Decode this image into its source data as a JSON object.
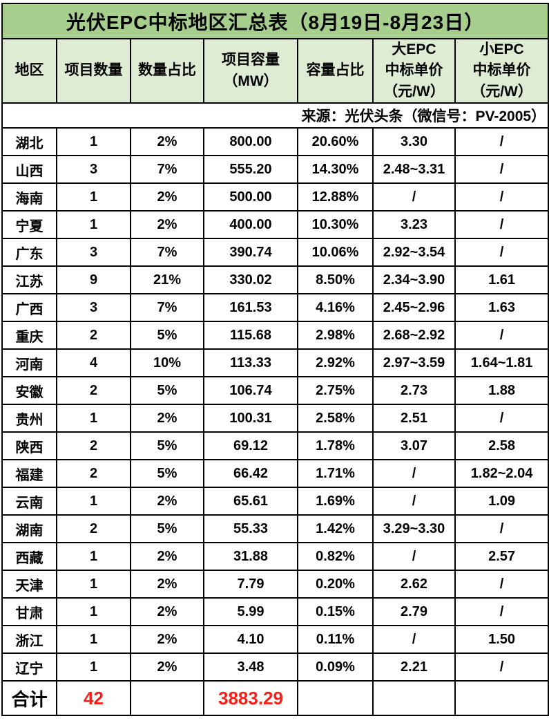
{
  "title": "光伏EPC中标地区汇总表（8月19日-8月23日）",
  "source_note": "来源：光伏头条（微信号：PV-2005）",
  "colors": {
    "title_bg": "#a6ce8c",
    "header_bg": "#deecd4",
    "grid": "#000000",
    "highlight_red": "#fa1e19"
  },
  "chart_data": {
    "type": "table",
    "title": "光伏EPC中标地区汇总表（8月19日-8月23日）",
    "source": "来源：光伏头条（微信号：PV-2005）",
    "columns": [
      {
        "label": "地区",
        "lines": [
          "地区"
        ]
      },
      {
        "label": "项目数量",
        "lines": [
          "项目数量"
        ]
      },
      {
        "label": "数量占比",
        "lines": [
          "数量占比"
        ]
      },
      {
        "label": "项目容量（MW）",
        "lines": [
          "项目容量",
          "（MW）"
        ]
      },
      {
        "label": "容量占比",
        "lines": [
          "容量占比"
        ]
      },
      {
        "label": "大EPC中标单价（元/W）",
        "lines": [
          "大EPC",
          "中标单价",
          "（元/W）"
        ]
      },
      {
        "label": "小EPC中标单价（元/W）",
        "lines": [
          "小EPC",
          "中标单价",
          "（元/W）"
        ]
      }
    ],
    "rows": [
      [
        "湖北",
        "1",
        "2%",
        "800.00",
        "20.60%",
        "3.30",
        "/"
      ],
      [
        "山西",
        "3",
        "7%",
        "555.20",
        "14.30%",
        "2.48~3.31",
        "/"
      ],
      [
        "海南",
        "1",
        "2%",
        "500.00",
        "12.88%",
        "/",
        "/"
      ],
      [
        "宁夏",
        "1",
        "2%",
        "400.00",
        "10.30%",
        "3.23",
        "/"
      ],
      [
        "广东",
        "3",
        "7%",
        "390.74",
        "10.06%",
        "2.92~3.54",
        "/"
      ],
      [
        "江苏",
        "9",
        "21%",
        "330.02",
        "8.50%",
        "2.34~3.90",
        "1.61"
      ],
      [
        "广西",
        "3",
        "7%",
        "161.53",
        "4.16%",
        "2.45~2.96",
        "1.63"
      ],
      [
        "重庆",
        "2",
        "5%",
        "115.68",
        "2.98%",
        "2.68~2.92",
        "/"
      ],
      [
        "河南",
        "4",
        "10%",
        "113.33",
        "2.92%",
        "2.97~3.59",
        "1.64~1.81"
      ],
      [
        "安徽",
        "2",
        "5%",
        "106.74",
        "2.75%",
        "2.73",
        "1.88"
      ],
      [
        "贵州",
        "1",
        "2%",
        "100.31",
        "2.58%",
        "2.51",
        "/"
      ],
      [
        "陕西",
        "2",
        "5%",
        "69.12",
        "1.78%",
        "3.07",
        "2.58"
      ],
      [
        "福建",
        "2",
        "5%",
        "66.42",
        "1.71%",
        "/",
        "1.82~2.04"
      ],
      [
        "云南",
        "1",
        "2%",
        "65.61",
        "1.69%",
        "/",
        "1.09"
      ],
      [
        "湖南",
        "2",
        "5%",
        "55.33",
        "1.42%",
        "3.29~3.30",
        "/"
      ],
      [
        "西藏",
        "1",
        "2%",
        "31.88",
        "0.82%",
        "/",
        "2.57"
      ],
      [
        "天津",
        "1",
        "2%",
        "7.79",
        "0.20%",
        "2.62",
        "/"
      ],
      [
        "甘肃",
        "1",
        "2%",
        "5.99",
        "0.15%",
        "2.79",
        "/"
      ],
      [
        "浙江",
        "1",
        "2%",
        "4.10",
        "0.11%",
        "/",
        "1.50"
      ],
      [
        "辽宁",
        "1",
        "2%",
        "3.48",
        "0.09%",
        "2.21",
        "/"
      ]
    ],
    "total_row": {
      "label": "合计",
      "values": [
        "42",
        "",
        "3883.29",
        "",
        "",
        ""
      ]
    }
  }
}
